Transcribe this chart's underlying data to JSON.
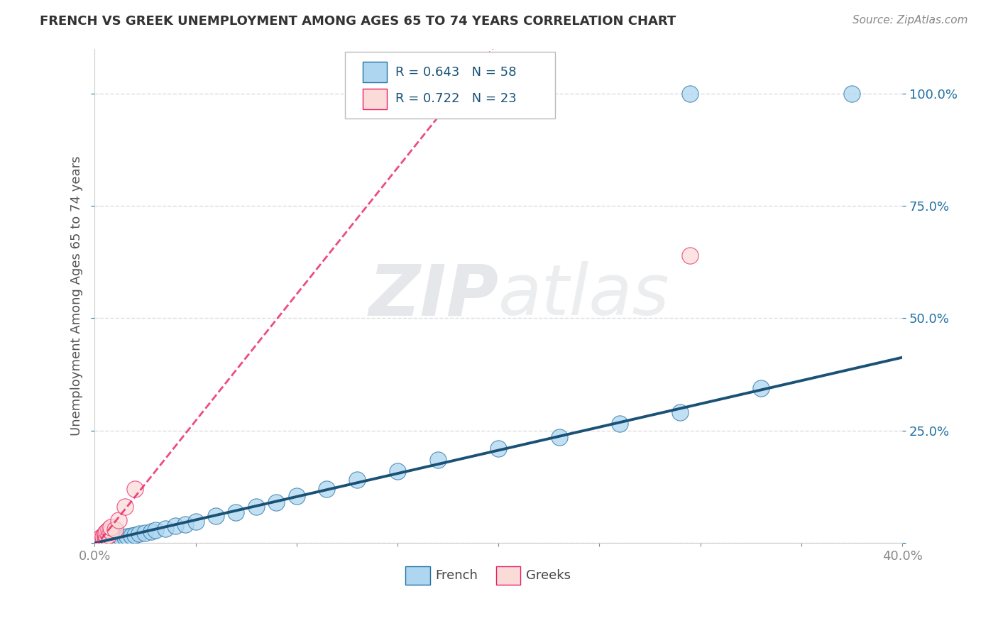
{
  "title": "FRENCH VS GREEK UNEMPLOYMENT AMONG AGES 65 TO 74 YEARS CORRELATION CHART",
  "source": "Source: ZipAtlas.com",
  "ylabel": "Unemployment Among Ages 65 to 74 years",
  "x_min": 0.0,
  "x_max": 0.4,
  "y_min": 0.0,
  "y_max": 1.1,
  "french_color": "#AED6F1",
  "french_edge_color": "#2471A3",
  "greek_color": "#FADBD8",
  "greek_edge_color": "#E91E63",
  "french_line_color": "#1A5276",
  "greek_line_color": "#E91E63",
  "r_french": "0.643",
  "n_french": "58",
  "r_greek": "0.722",
  "n_greek": "23",
  "legend_text_color": "#1A5276",
  "yaxis_label_color": "#2471A3",
  "title_color": "#333333",
  "source_color": "#888888",
  "grid_color": "#DDDDDD",
  "tick_color": "#2471A3",
  "bottom_label_french": "French",
  "bottom_label_greek": "Greeks",
  "watermark_zip_color": "#D5D8DC",
  "watermark_atlas_color": "#D5D8DC"
}
